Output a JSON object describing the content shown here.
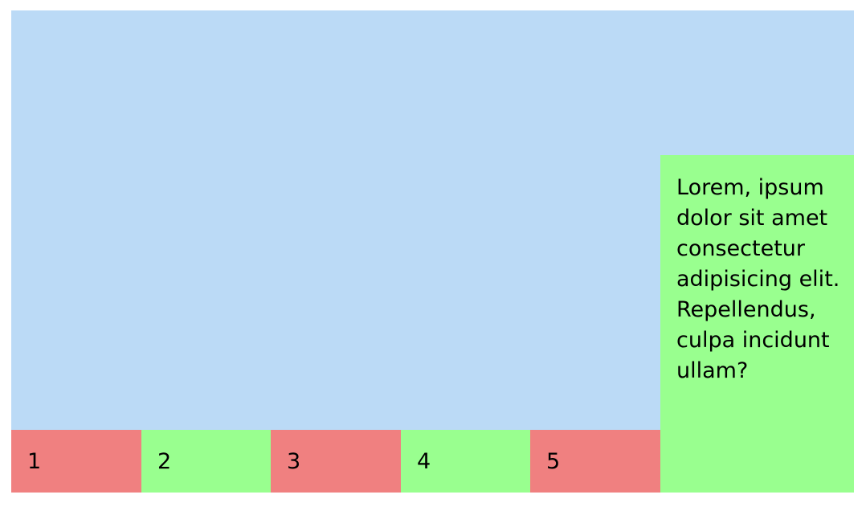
{
  "items": [
    {
      "label": "1",
      "color": "#f08080"
    },
    {
      "label": "2",
      "color": "#99ff8f"
    },
    {
      "label": "3",
      "color": "#f08080"
    },
    {
      "label": "4",
      "color": "#99ff8f"
    },
    {
      "label": "5",
      "color": "#f08080"
    }
  ],
  "tall_item": {
    "text": "Lorem, ipsum dolor sit amet consectetur adipisicing elit. Repellendus, culpa incidunt ullam?",
    "color": "#99ff8f"
  },
  "container_color": "#bbdaf6"
}
